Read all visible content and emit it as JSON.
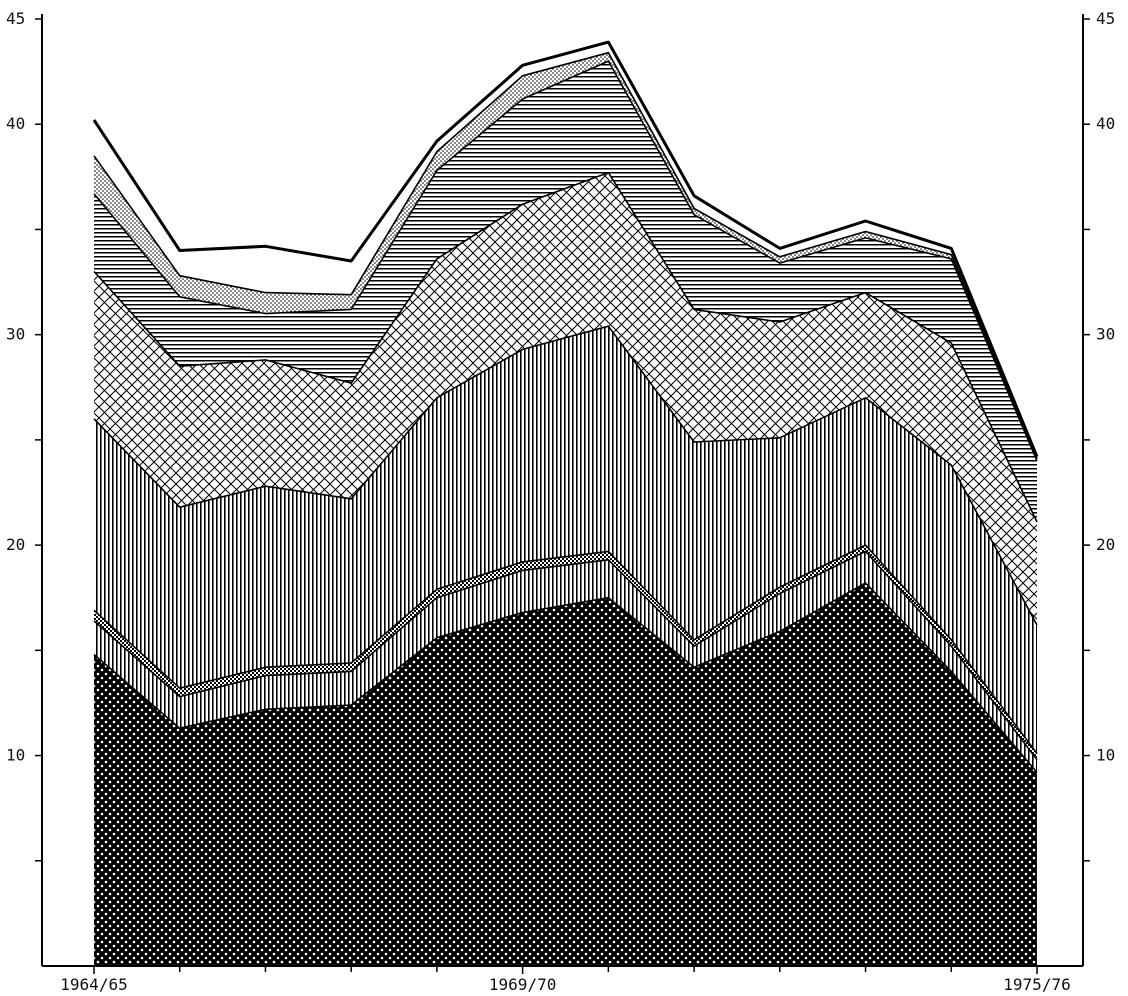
{
  "chart_data": {
    "type": "area",
    "stacked": true,
    "x_count": 12,
    "x_tick_labels": [
      "1964/65",
      "1969/70",
      "1975/76"
    ],
    "x_tick_label_index": [
      0,
      5,
      11
    ],
    "ylim": [
      0,
      45
    ],
    "y_tick_values": [
      5,
      10,
      15,
      20,
      25,
      30,
      35,
      40,
      45
    ],
    "y_tick_labels_left": [
      "",
      "10",
      "",
      "20",
      "",
      "30",
      "",
      "40",
      "45"
    ],
    "y_tick_labels_right": [
      "",
      "10",
      "",
      "20",
      "",
      "30",
      "",
      "40",
      "45"
    ],
    "grid": false,
    "legend": "none",
    "series": [
      {
        "pattern": "dense-dots",
        "values": [
          14.8,
          11.3,
          12.2,
          12.4,
          15.6,
          16.8,
          17.5,
          14.2,
          15.9,
          18.2,
          14.0,
          9.2
        ]
      },
      {
        "pattern": "vertical-lines",
        "values": [
          1.6,
          1.5,
          1.6,
          1.6,
          1.9,
          2.0,
          1.8,
          1.0,
          1.8,
          1.5,
          1.2,
          0.6
        ]
      },
      {
        "pattern": "small-checks",
        "values": [
          0.5,
          0.4,
          0.4,
          0.4,
          0.4,
          0.4,
          0.4,
          0.3,
          0.3,
          0.3,
          0.3,
          0.3
        ]
      },
      {
        "pattern": "vertical-lines",
        "values": [
          9.1,
          8.6,
          8.6,
          7.8,
          9.1,
          10.1,
          10.7,
          9.4,
          7.1,
          7.0,
          8.3,
          6.1
        ]
      },
      {
        "pattern": "crosshatch",
        "values": [
          7.0,
          6.7,
          6.0,
          5.5,
          6.6,
          6.9,
          7.3,
          6.3,
          5.5,
          5.0,
          5.8,
          4.9
        ]
      },
      {
        "pattern": "horizontal-lines",
        "values": [
          3.7,
          3.3,
          2.2,
          3.5,
          4.2,
          5.0,
          5.3,
          4.5,
          2.8,
          2.6,
          4.0,
          2.9
        ]
      },
      {
        "pattern": "light-dots",
        "values": [
          1.8,
          1.0,
          1.0,
          0.7,
          0.9,
          1.1,
          0.4,
          0.3,
          0.3,
          0.3,
          0.2,
          0.1
        ]
      },
      {
        "pattern": "white",
        "values": [
          1.7,
          1.2,
          2.2,
          1.6,
          0.5,
          0.5,
          0.5,
          0.6,
          0.4,
          0.5,
          0.3,
          0.1
        ]
      }
    ]
  }
}
